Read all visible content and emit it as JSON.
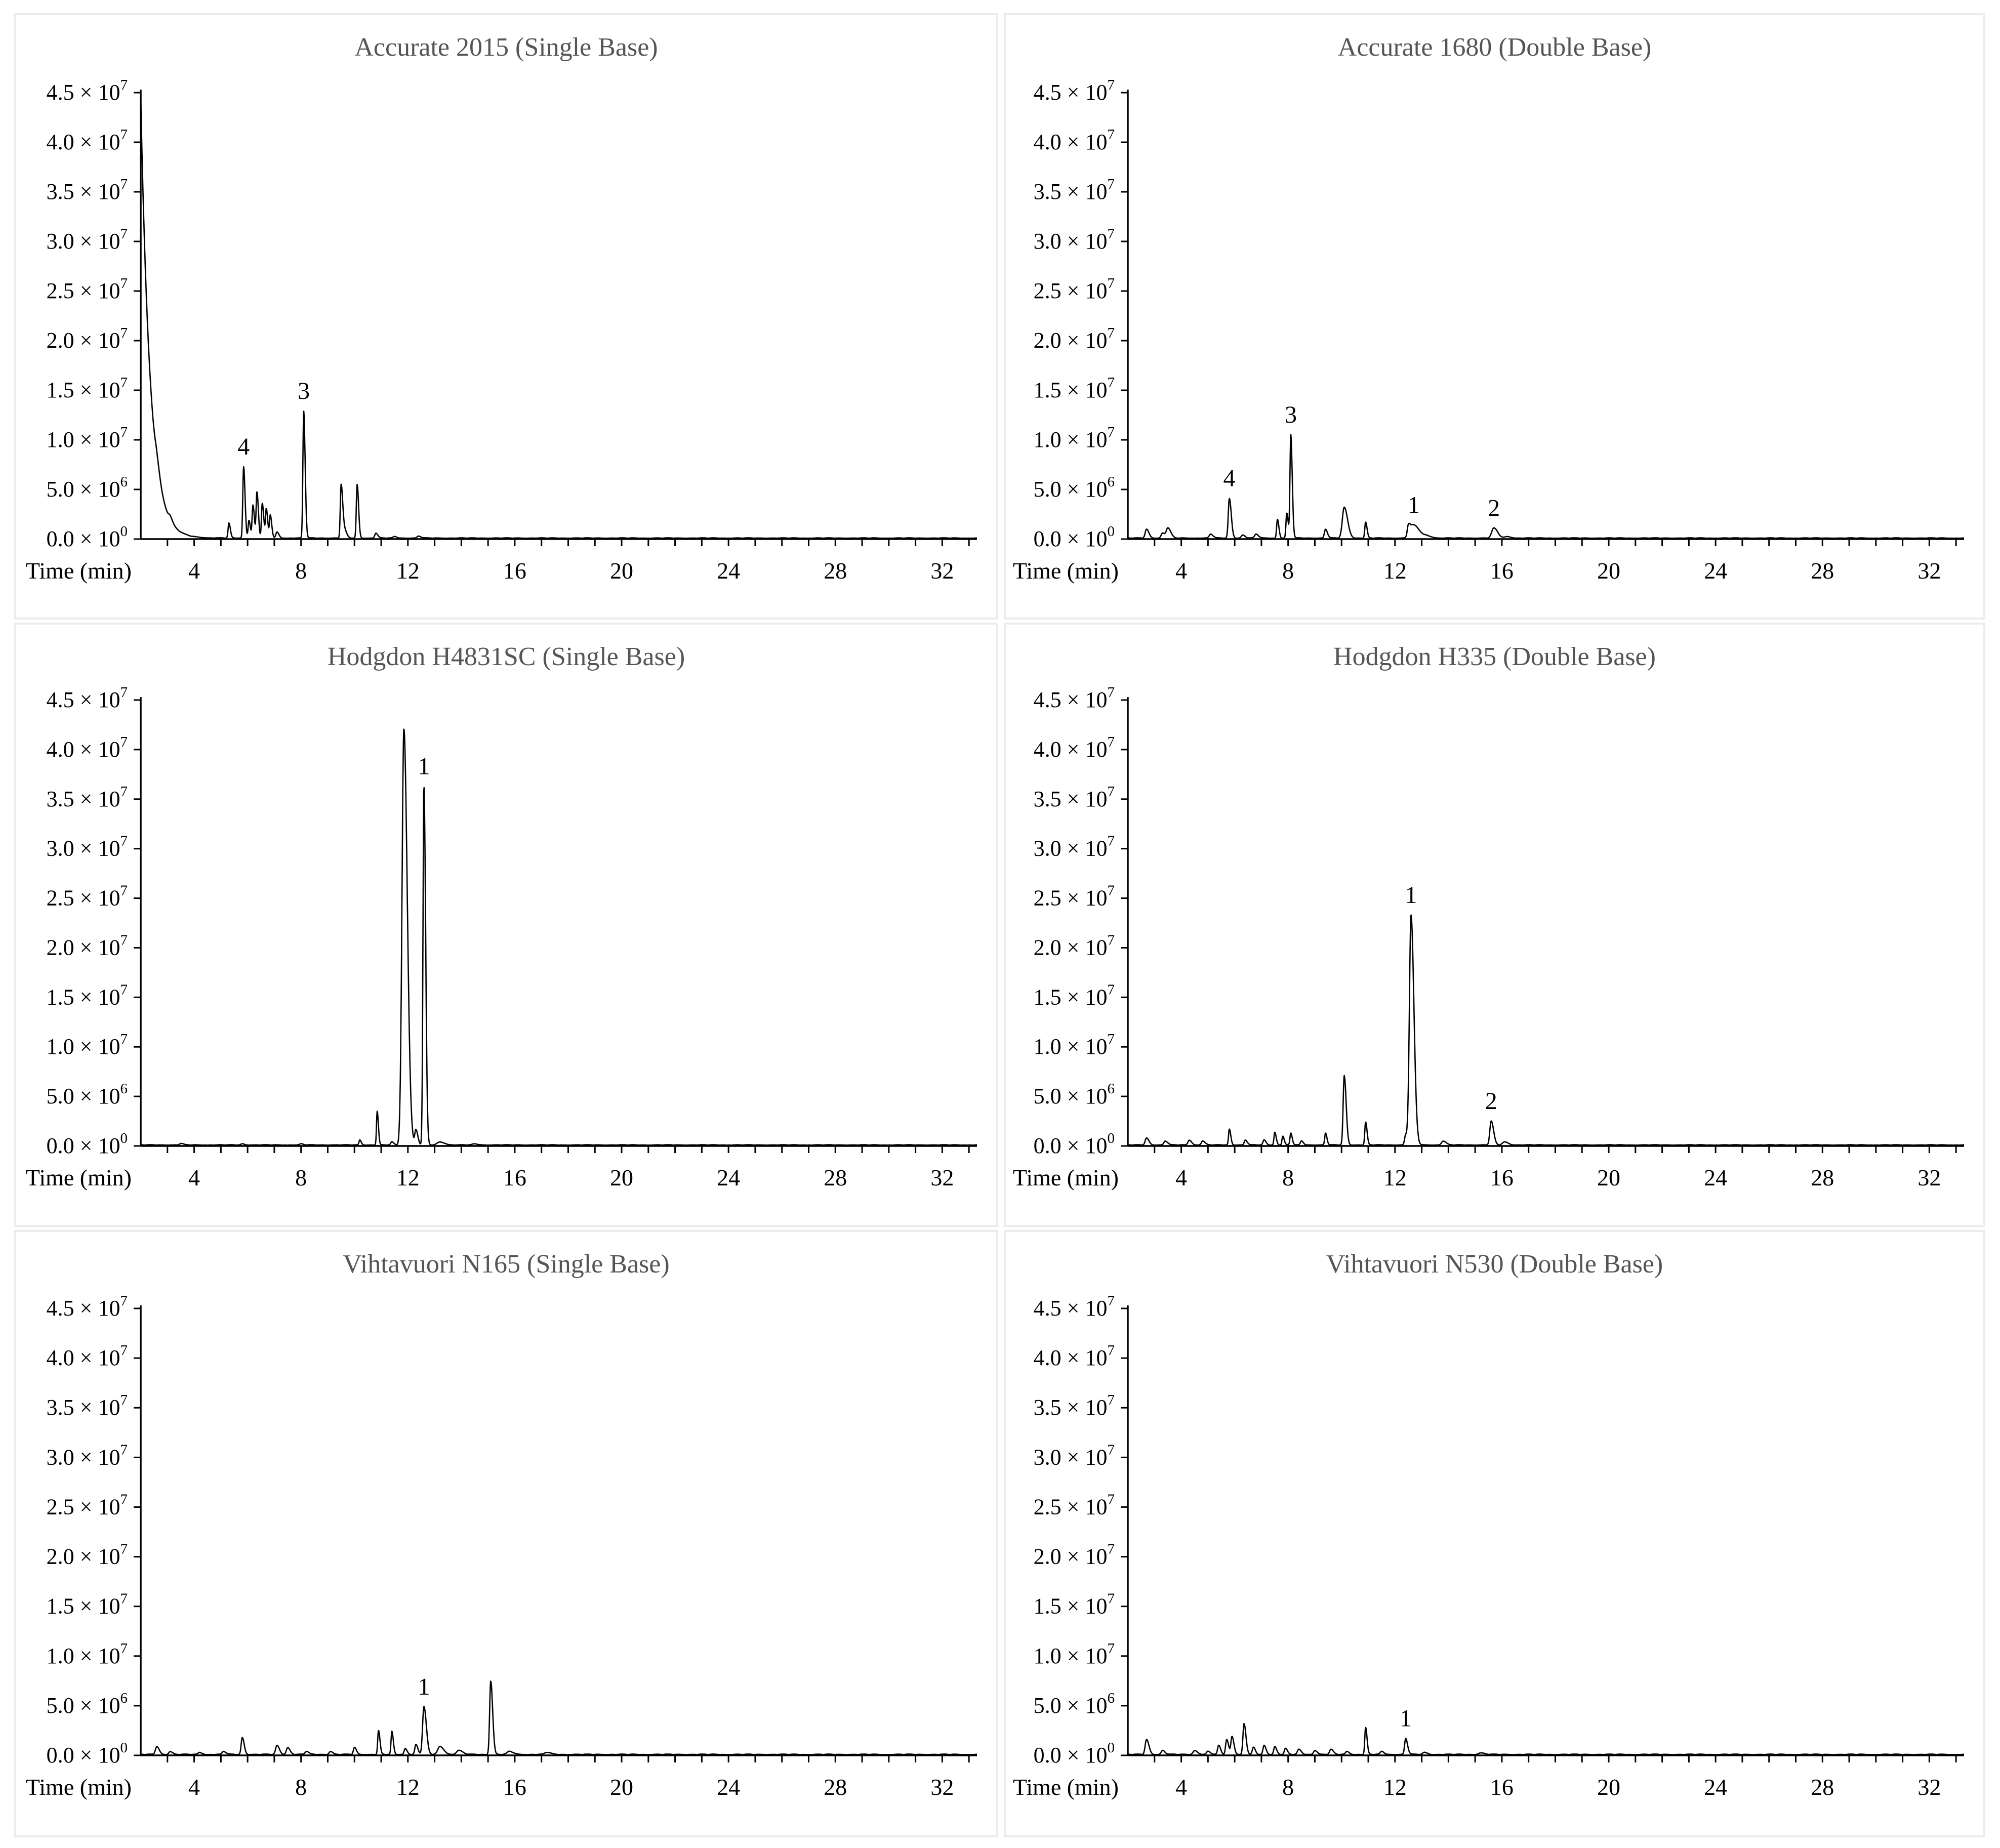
{
  "chart_data": [
    {
      "type": "line",
      "title": "Accurate 2015 (Single Base)",
      "xlabel": "Time (min)",
      "ylabel": "",
      "xlim": [
        2,
        33.3
      ],
      "ylim": [
        0,
        45000000
      ],
      "xticks": [
        4,
        8,
        12,
        16,
        20,
        24,
        28,
        32
      ],
      "yticks": [
        {
          "m": "0.0",
          "e": "0"
        },
        {
          "m": "5.0",
          "e": "6"
        },
        {
          "m": "1.0",
          "e": "7"
        },
        {
          "m": "1.5",
          "e": "7"
        },
        {
          "m": "2.0",
          "e": "7"
        },
        {
          "m": "2.5",
          "e": "7"
        },
        {
          "m": "3.0",
          "e": "7"
        },
        {
          "m": "3.5",
          "e": "7"
        },
        {
          "m": "4.0",
          "e": "7"
        },
        {
          "m": "4.5",
          "e": "7"
        }
      ],
      "initial": {
        "y0": 44500000,
        "decay": 0.35
      },
      "peaks": [
        [
          2.6,
          800000,
          0.06
        ],
        [
          3.1,
          400000,
          0.05
        ],
        [
          5.3,
          1500000,
          0.03
        ],
        [
          5.85,
          7200000,
          0.03,
          "4"
        ],
        [
          6.05,
          1800000,
          0.03
        ],
        [
          6.2,
          3300000,
          0.03
        ],
        [
          6.35,
          4600000,
          0.03
        ],
        [
          6.55,
          3500000,
          0.03
        ],
        [
          6.7,
          2900000,
          0.03
        ],
        [
          6.85,
          2300000,
          0.03
        ],
        [
          7.1,
          600000,
          0.04
        ],
        [
          8.1,
          12800000,
          0.03,
          "3"
        ],
        [
          9.5,
          5300000,
          0.03
        ],
        [
          9.6,
          1000000,
          0.05
        ],
        [
          10.1,
          5400000,
          0.03
        ],
        [
          10.8,
          500000,
          0.04
        ],
        [
          11.5,
          150000,
          0.05
        ],
        [
          12.4,
          200000,
          0.05
        ]
      ]
    },
    {
      "type": "line",
      "title": "Accurate 1680 (Double Base)",
      "xlabel": "Time (min)",
      "ylabel": "",
      "xlim": [
        2,
        33.3
      ],
      "ylim": [
        0,
        45000000
      ],
      "xticks": [
        4,
        8,
        12,
        16,
        20,
        24,
        28,
        32
      ],
      "yticks": [
        {
          "m": "0.0",
          "e": "0"
        },
        {
          "m": "5.0",
          "e": "6"
        },
        {
          "m": "1.0",
          "e": "7"
        },
        {
          "m": "1.5",
          "e": "7"
        },
        {
          "m": "2.0",
          "e": "7"
        },
        {
          "m": "2.5",
          "e": "7"
        },
        {
          "m": "3.0",
          "e": "7"
        },
        {
          "m": "3.5",
          "e": "7"
        },
        {
          "m": "4.0",
          "e": "7"
        },
        {
          "m": "4.5",
          "e": "7"
        }
      ],
      "peaks": [
        [
          2.7,
          900000,
          0.05
        ],
        [
          3.3,
          500000,
          0.05
        ],
        [
          3.5,
          1000000,
          0.06
        ],
        [
          5.1,
          400000,
          0.05
        ],
        [
          5.8,
          4000000,
          0.04,
          "4"
        ],
        [
          6.3,
          300000,
          0.05
        ],
        [
          6.8,
          400000,
          0.05
        ],
        [
          7.6,
          1900000,
          0.03
        ],
        [
          7.95,
          2500000,
          0.03
        ],
        [
          8.1,
          10400000,
          0.03,
          "3"
        ],
        [
          9.4,
          900000,
          0.04
        ],
        [
          10.1,
          3100000,
          0.07
        ],
        [
          10.9,
          1600000,
          0.03
        ],
        [
          12.5,
          1100000,
          0.04
        ],
        [
          12.7,
          1300000,
          0.12,
          "1"
        ],
        [
          13.2,
          200000,
          0.1
        ],
        [
          15.7,
          1000000,
          0.08,
          "2"
        ],
        [
          16.2,
          150000,
          0.08
        ]
      ]
    },
    {
      "type": "line",
      "title": "Hodgdon H4831SC (Single Base)",
      "xlabel": "Time (min)",
      "ylabel": "",
      "xlim": [
        2,
        33.3
      ],
      "ylim": [
        0,
        45000000
      ],
      "xticks": [
        4,
        8,
        12,
        16,
        20,
        24,
        28,
        32
      ],
      "yticks": [
        {
          "m": "0.0",
          "e": "0"
        },
        {
          "m": "5.0",
          "e": "6"
        },
        {
          "m": "1.0",
          "e": "7"
        },
        {
          "m": "1.5",
          "e": "7"
        },
        {
          "m": "2.0",
          "e": "7"
        },
        {
          "m": "2.5",
          "e": "7"
        },
        {
          "m": "3.0",
          "e": "7"
        },
        {
          "m": "3.5",
          "e": "7"
        },
        {
          "m": "4.0",
          "e": "7"
        },
        {
          "m": "4.5",
          "e": "7"
        }
      ],
      "peaks": [
        [
          3.5,
          150000,
          0.05
        ],
        [
          5.8,
          120000,
          0.05
        ],
        [
          8.0,
          100000,
          0.05
        ],
        [
          10.2,
          500000,
          0.03
        ],
        [
          10.85,
          3400000,
          0.025
        ],
        [
          11.4,
          300000,
          0.04
        ],
        [
          11.85,
          42000000,
          0.07
        ],
        [
          12.3,
          1500000,
          0.04
        ],
        [
          12.6,
          36200000,
          0.035,
          "1"
        ],
        [
          13.2,
          300000,
          0.1
        ],
        [
          14.5,
          100000,
          0.08
        ]
      ]
    },
    {
      "type": "line",
      "title": "Hodgdon H335 (Double Base)",
      "xlabel": "Time (min)",
      "ylabel": "",
      "xlim": [
        2,
        33.3
      ],
      "ylim": [
        0,
        45000000
      ],
      "xticks": [
        4,
        8,
        12,
        16,
        20,
        24,
        28,
        32
      ],
      "yticks": [
        {
          "m": "0.0",
          "e": "0"
        },
        {
          "m": "5.0",
          "e": "6"
        },
        {
          "m": "1.0",
          "e": "7"
        },
        {
          "m": "1.5",
          "e": "7"
        },
        {
          "m": "2.0",
          "e": "7"
        },
        {
          "m": "2.5",
          "e": "7"
        },
        {
          "m": "3.0",
          "e": "7"
        },
        {
          "m": "3.5",
          "e": "7"
        },
        {
          "m": "4.0",
          "e": "7"
        },
        {
          "m": "4.5",
          "e": "7"
        }
      ],
      "peaks": [
        [
          2.7,
          700000,
          0.05
        ],
        [
          3.4,
          400000,
          0.05
        ],
        [
          4.3,
          500000,
          0.05
        ],
        [
          4.8,
          400000,
          0.05
        ],
        [
          5.8,
          1600000,
          0.03
        ],
        [
          6.4,
          500000,
          0.04
        ],
        [
          7.1,
          500000,
          0.04
        ],
        [
          7.5,
          1300000,
          0.03
        ],
        [
          7.8,
          900000,
          0.03
        ],
        [
          8.1,
          1200000,
          0.03
        ],
        [
          8.5,
          400000,
          0.04
        ],
        [
          9.4,
          1200000,
          0.03
        ],
        [
          10.1,
          7000000,
          0.04
        ],
        [
          10.9,
          2300000,
          0.03
        ],
        [
          12.4,
          1000000,
          0.04
        ],
        [
          12.6,
          23200000,
          0.06,
          "1"
        ],
        [
          13.8,
          400000,
          0.06
        ],
        [
          15.6,
          2400000,
          0.05,
          "2"
        ],
        [
          16.1,
          300000,
          0.08
        ]
      ]
    },
    {
      "type": "line",
      "title": "Vihtavuori N165 (Single Base)",
      "xlabel": "Time (min)",
      "ylabel": "",
      "xlim": [
        2,
        33.3
      ],
      "ylim": [
        0,
        45000000
      ],
      "xticks": [
        4,
        8,
        12,
        16,
        20,
        24,
        28,
        32
      ],
      "yticks": [
        {
          "m": "0.0",
          "e": "0"
        },
        {
          "m": "5.0",
          "e": "6"
        },
        {
          "m": "1.0",
          "e": "7"
        },
        {
          "m": "1.5",
          "e": "7"
        },
        {
          "m": "2.0",
          "e": "7"
        },
        {
          "m": "2.5",
          "e": "7"
        },
        {
          "m": "3.0",
          "e": "7"
        },
        {
          "m": "3.5",
          "e": "7"
        },
        {
          "m": "4.0",
          "e": "7"
        },
        {
          "m": "4.5",
          "e": "7"
        }
      ],
      "peaks": [
        [
          2.6,
          800000,
          0.05
        ],
        [
          3.1,
          300000,
          0.05
        ],
        [
          4.2,
          200000,
          0.05
        ],
        [
          5.1,
          300000,
          0.05
        ],
        [
          5.8,
          1700000,
          0.04
        ],
        [
          7.1,
          900000,
          0.05
        ],
        [
          7.5,
          700000,
          0.05
        ],
        [
          8.2,
          300000,
          0.05
        ],
        [
          9.1,
          300000,
          0.05
        ],
        [
          10.0,
          700000,
          0.04
        ],
        [
          10.9,
          2400000,
          0.03
        ],
        [
          11.4,
          2300000,
          0.03
        ],
        [
          11.9,
          600000,
          0.04
        ],
        [
          12.3,
          1000000,
          0.04
        ],
        [
          12.6,
          4800000,
          0.05,
          "1"
        ],
        [
          13.2,
          800000,
          0.08
        ],
        [
          13.9,
          400000,
          0.08
        ],
        [
          15.1,
          7400000,
          0.04
        ],
        [
          15.8,
          300000,
          0.08
        ],
        [
          17.2,
          200000,
          0.08
        ]
      ]
    },
    {
      "type": "line",
      "title": "Vihtavuori N530 (Double Base)",
      "xlabel": "Time (min)",
      "ylabel": "",
      "xlim": [
        2,
        33.3
      ],
      "ylim": [
        0,
        45000000
      ],
      "xticks": [
        4,
        8,
        12,
        16,
        20,
        24,
        28,
        32
      ],
      "yticks": [
        {
          "m": "0.0",
          "e": "0"
        },
        {
          "m": "5.0",
          "e": "6"
        },
        {
          "m": "1.0",
          "e": "7"
        },
        {
          "m": "1.5",
          "e": "7"
        },
        {
          "m": "2.0",
          "e": "7"
        },
        {
          "m": "2.5",
          "e": "7"
        },
        {
          "m": "3.0",
          "e": "7"
        },
        {
          "m": "3.5",
          "e": "7"
        },
        {
          "m": "4.0",
          "e": "7"
        },
        {
          "m": "4.5",
          "e": "7"
        }
      ],
      "peaks": [
        [
          2.7,
          1500000,
          0.05
        ],
        [
          3.3,
          400000,
          0.05
        ],
        [
          4.5,
          400000,
          0.06
        ],
        [
          5.0,
          300000,
          0.05
        ],
        [
          5.4,
          900000,
          0.04
        ],
        [
          5.7,
          1500000,
          0.04
        ],
        [
          5.9,
          1800000,
          0.04
        ],
        [
          6.35,
          3100000,
          0.04
        ],
        [
          6.7,
          700000,
          0.04
        ],
        [
          7.1,
          900000,
          0.04
        ],
        [
          7.5,
          800000,
          0.04
        ],
        [
          7.9,
          600000,
          0.04
        ],
        [
          8.4,
          500000,
          0.05
        ],
        [
          9.0,
          400000,
          0.05
        ],
        [
          9.6,
          500000,
          0.05
        ],
        [
          10.2,
          300000,
          0.05
        ],
        [
          10.9,
          2700000,
          0.03
        ],
        [
          11.5,
          300000,
          0.05
        ],
        [
          12.4,
          1600000,
          0.04,
          "1"
        ],
        [
          13.1,
          200000,
          0.06
        ],
        [
          15.2,
          150000,
          0.08
        ]
      ]
    }
  ]
}
